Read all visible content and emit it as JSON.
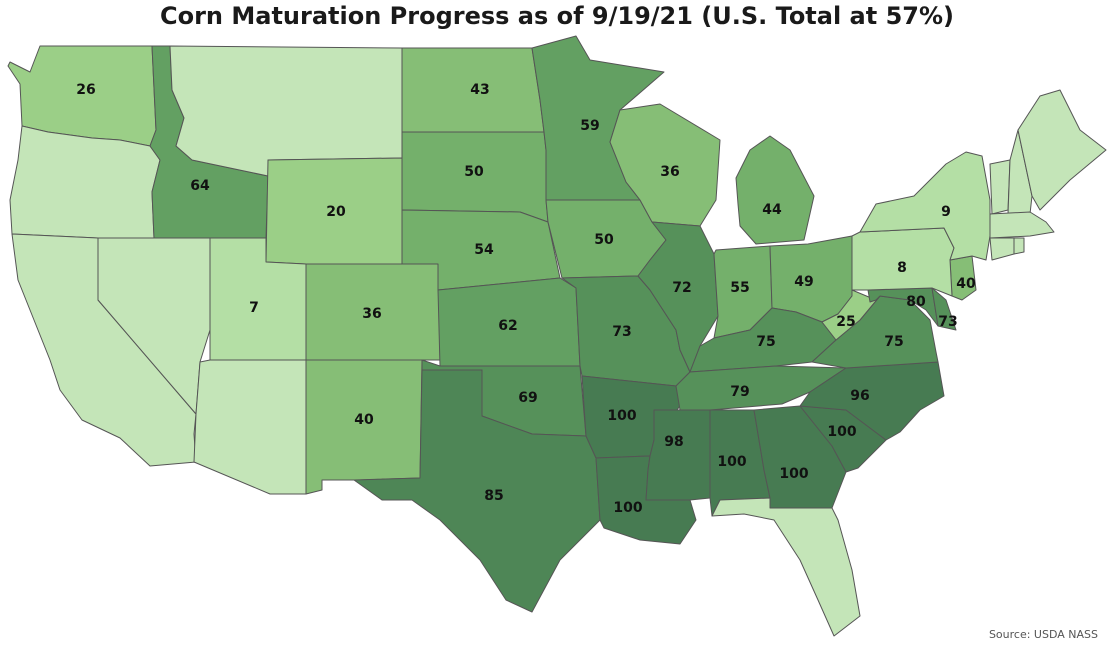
{
  "title": "Corn Maturation Progress as of 9/19/21 (U.S. Total at 57%)",
  "source": "Source: USDA NASS",
  "colors": {
    "background": "#ffffff",
    "border": "#555555",
    "scale": [
      "#c4e5b8",
      "#b4dfa5",
      "#9bcf87",
      "#86be76",
      "#74b06b",
      "#63a062",
      "#56915a",
      "#4e8656",
      "#477b52"
    ]
  },
  "states": [
    {
      "name": "Washington",
      "value": 26
    },
    {
      "name": "Oregon",
      "value": null
    },
    {
      "name": "California",
      "value": null
    },
    {
      "name": "Nevada",
      "value": null
    },
    {
      "name": "Idaho",
      "value": 64
    },
    {
      "name": "Montana",
      "value": null
    },
    {
      "name": "Wyoming",
      "value": 20
    },
    {
      "name": "Utah",
      "value": 7
    },
    {
      "name": "Arizona",
      "value": null
    },
    {
      "name": "Colorado",
      "value": 36
    },
    {
      "name": "New Mexico",
      "value": 40
    },
    {
      "name": "North Dakota",
      "value": 43
    },
    {
      "name": "South Dakota",
      "value": 50
    },
    {
      "name": "Nebraska",
      "value": 54
    },
    {
      "name": "Kansas",
      "value": 62
    },
    {
      "name": "Oklahoma",
      "value": 69
    },
    {
      "name": "Texas",
      "value": 85
    },
    {
      "name": "Minnesota",
      "value": 59
    },
    {
      "name": "Iowa",
      "value": 50
    },
    {
      "name": "Missouri",
      "value": 73
    },
    {
      "name": "Arkansas",
      "value": 100
    },
    {
      "name": "Louisiana",
      "value": 100
    },
    {
      "name": "Wisconsin",
      "value": 36
    },
    {
      "name": "Illinois",
      "value": 72
    },
    {
      "name": "Michigan",
      "value": 44
    },
    {
      "name": "Indiana",
      "value": 55
    },
    {
      "name": "Ohio",
      "value": 49
    },
    {
      "name": "Kentucky",
      "value": 75
    },
    {
      "name": "Tennessee",
      "value": 79
    },
    {
      "name": "Mississippi",
      "value": 98
    },
    {
      "name": "Alabama",
      "value": 100
    },
    {
      "name": "Georgia",
      "value": 100
    },
    {
      "name": "Florida",
      "value": null
    },
    {
      "name": "South Carolina",
      "value": 100
    },
    {
      "name": "North Carolina",
      "value": 96
    },
    {
      "name": "Virginia",
      "value": 75
    },
    {
      "name": "West Virginia",
      "value": 25
    },
    {
      "name": "Maryland",
      "value": 80
    },
    {
      "name": "Delaware",
      "value": 73
    },
    {
      "name": "New Jersey",
      "value": 40
    },
    {
      "name": "Pennsylvania",
      "value": 8
    },
    {
      "name": "New York",
      "value": 9
    },
    {
      "name": "Vermont",
      "value": null
    },
    {
      "name": "New Hampshire",
      "value": null
    },
    {
      "name": "Maine",
      "value": null
    },
    {
      "name": "Massachusetts",
      "value": null
    },
    {
      "name": "Connecticut",
      "value": null
    },
    {
      "name": "Rhode Island",
      "value": null
    }
  ]
}
